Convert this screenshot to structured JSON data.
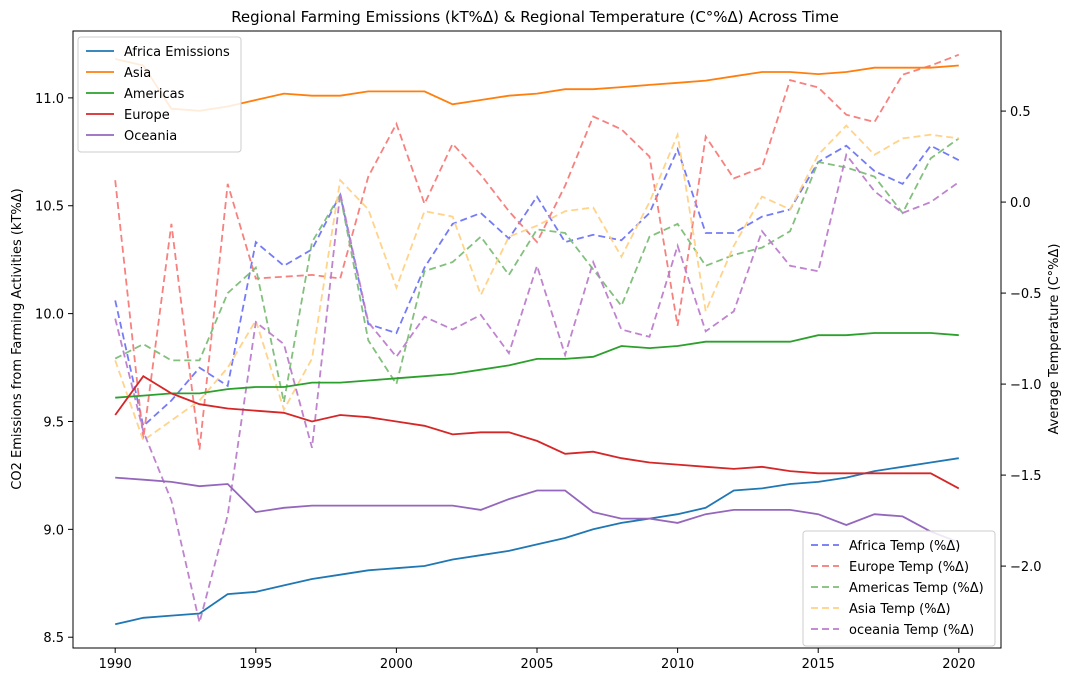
{
  "chart_data": {
    "type": "line",
    "title": "Regional Farming Emissions (kT%Δ) & Regional Temperature (C°%Δ) Across Time",
    "xlabel": "",
    "ylabel_left": "CO2 Emissions from Farming Activities (kT%Δ)",
    "ylabel_right": "Average Temperature (C°%Δ)",
    "xlim": [
      1988.5,
      2021.5
    ],
    "ylim_left": [
      8.45,
      11.31
    ],
    "ylim_right": [
      -2.45,
      0.94
    ],
    "x_ticks": [
      1990,
      1995,
      2000,
      2005,
      2010,
      2015,
      2020
    ],
    "x_tick_labels": [
      "1990",
      "1995",
      "2000",
      "2005",
      "2010",
      "2015",
      "2020"
    ],
    "y_left_ticks": [
      8.5,
      9.0,
      9.5,
      10.0,
      10.5,
      11.0
    ],
    "y_left_tick_labels": [
      "8.5",
      "9.0",
      "9.5",
      "10.0",
      "10.5",
      "11.0"
    ],
    "y_right_ticks": [
      -2.0,
      -1.5,
      -1.0,
      -0.5,
      0.0,
      0.5
    ],
    "y_right_tick_labels": [
      "−2.0",
      "−1.5",
      "−1.0",
      "−0.5",
      "0.0",
      "0.5"
    ],
    "grid": false,
    "legend_emissions_position": "upper-left",
    "legend_temperature_position": "lower-right",
    "x": [
      1990,
      1991,
      1992,
      1993,
      1994,
      1995,
      1996,
      1997,
      1998,
      1999,
      2000,
      2001,
      2002,
      2003,
      2004,
      2005,
      2006,
      2007,
      2008,
      2009,
      2010,
      2011,
      2012,
      2013,
      2014,
      2015,
      2016,
      2017,
      2018,
      2019,
      2020
    ],
    "emissions_series": [
      {
        "name": "Africa Emissions",
        "color": "#1f77b4",
        "values": [
          8.56,
          8.59,
          8.6,
          8.61,
          8.7,
          8.71,
          8.74,
          8.77,
          8.79,
          8.81,
          8.82,
          8.83,
          8.86,
          8.88,
          8.9,
          8.93,
          8.96,
          9.0,
          9.03,
          9.05,
          9.07,
          9.1,
          9.18,
          9.19,
          9.21,
          9.22,
          9.24,
          9.27,
          9.29,
          9.31,
          9.33
        ]
      },
      {
        "name": "Asia",
        "color": "#ff7f0e",
        "values": [
          11.18,
          11.15,
          10.95,
          10.94,
          10.96,
          10.99,
          11.02,
          11.01,
          11.01,
          11.03,
          11.03,
          11.03,
          10.97,
          10.99,
          11.01,
          11.02,
          11.04,
          11.04,
          11.05,
          11.06,
          11.07,
          11.08,
          11.1,
          11.12,
          11.12,
          11.11,
          11.12,
          11.14,
          11.14,
          11.14,
          11.15
        ]
      },
      {
        "name": "Americas",
        "color": "#2ca02c",
        "values": [
          9.61,
          9.62,
          9.63,
          9.63,
          9.65,
          9.66,
          9.66,
          9.68,
          9.68,
          9.69,
          9.7,
          9.71,
          9.72,
          9.74,
          9.76,
          9.79,
          9.79,
          9.8,
          9.85,
          9.84,
          9.85,
          9.87,
          9.87,
          9.87,
          9.87,
          9.9,
          9.9,
          9.91,
          9.91,
          9.91,
          9.9
        ]
      },
      {
        "name": "Europe",
        "color": "#d62728",
        "values": [
          9.53,
          9.71,
          9.63,
          9.58,
          9.56,
          9.55,
          9.54,
          9.5,
          9.53,
          9.52,
          9.5,
          9.48,
          9.44,
          9.45,
          9.45,
          9.41,
          9.35,
          9.36,
          9.33,
          9.31,
          9.3,
          9.29,
          9.28,
          9.29,
          9.27,
          9.26,
          9.26,
          9.26,
          9.26,
          9.26,
          9.19
        ]
      },
      {
        "name": "Oceania",
        "color": "#9467bd",
        "values": [
          9.24,
          9.23,
          9.22,
          9.2,
          9.21,
          9.08,
          9.1,
          9.11,
          9.11,
          9.11,
          9.11,
          9.11,
          9.11,
          9.09,
          9.14,
          9.18,
          9.18,
          9.08,
          9.05,
          9.05,
          9.03,
          9.07,
          9.09,
          9.09,
          9.09,
          9.07,
          9.02,
          9.07,
          9.06,
          8.99,
          8.94
        ]
      }
    ],
    "temperature_series": [
      {
        "name": "Africa Temp (%Δ)",
        "color": "#6e74f5",
        "values": [
          -0.54,
          -1.23,
          -1.09,
          -0.91,
          -1.01,
          -0.22,
          -0.35,
          -0.26,
          0.04,
          -0.67,
          -0.72,
          -0.36,
          -0.12,
          -0.06,
          -0.2,
          0.03,
          -0.22,
          -0.18,
          -0.21,
          -0.06,
          0.29,
          -0.17,
          -0.17,
          -0.08,
          -0.04,
          0.22,
          0.31,
          0.17,
          0.1,
          0.31,
          0.23
        ]
      },
      {
        "name": "Europe Temp (%Δ)",
        "color": "#f57a78",
        "values": [
          0.12,
          -1.3,
          -0.12,
          -1.36,
          0.1,
          -0.42,
          -0.41,
          -0.4,
          -0.42,
          0.14,
          0.43,
          -0.01,
          0.32,
          0.15,
          -0.05,
          -0.22,
          0.09,
          0.47,
          0.4,
          0.25,
          -0.68,
          0.36,
          0.13,
          0.19,
          0.67,
          0.63,
          0.48,
          0.44,
          0.7,
          0.75,
          0.81
        ]
      },
      {
        "name": "Americas Temp (%Δ)",
        "color": "#7cbd76",
        "values": [
          -0.86,
          -0.78,
          -0.87,
          -0.87,
          -0.5,
          -0.36,
          -1.1,
          -0.22,
          0.04,
          -0.76,
          -1.0,
          -0.38,
          -0.33,
          -0.19,
          -0.4,
          -0.15,
          -0.17,
          -0.37,
          -0.57,
          -0.19,
          -0.12,
          -0.35,
          -0.29,
          -0.25,
          -0.16,
          0.22,
          0.19,
          0.14,
          -0.06,
          0.24,
          0.35
        ]
      },
      {
        "name": "Asia Temp (%Δ)",
        "color": "#ffd184",
        "values": [
          -0.87,
          -1.31,
          -1.2,
          -1.09,
          -0.91,
          -0.65,
          -1.14,
          -0.86,
          0.12,
          -0.04,
          -0.47,
          -0.05,
          -0.08,
          -0.51,
          -0.19,
          -0.13,
          -0.05,
          -0.03,
          -0.3,
          0.0,
          0.37,
          -0.6,
          -0.24,
          0.03,
          -0.04,
          0.26,
          0.42,
          0.26,
          0.35,
          0.37,
          0.35
        ]
      },
      {
        "name": "oceania Temp (%Δ)",
        "color": "#bc7ccc",
        "values": [
          -0.64,
          -1.26,
          -1.64,
          -2.31,
          -1.72,
          -0.66,
          -0.78,
          -1.35,
          0.05,
          -0.66,
          -0.85,
          -0.63,
          -0.7,
          -0.62,
          -0.83,
          -0.35,
          -0.84,
          -0.33,
          -0.7,
          -0.74,
          -0.24,
          -0.71,
          -0.6,
          -0.16,
          -0.35,
          -0.38,
          0.26,
          0.06,
          -0.06,
          0.0,
          0.11
        ]
      }
    ]
  }
}
